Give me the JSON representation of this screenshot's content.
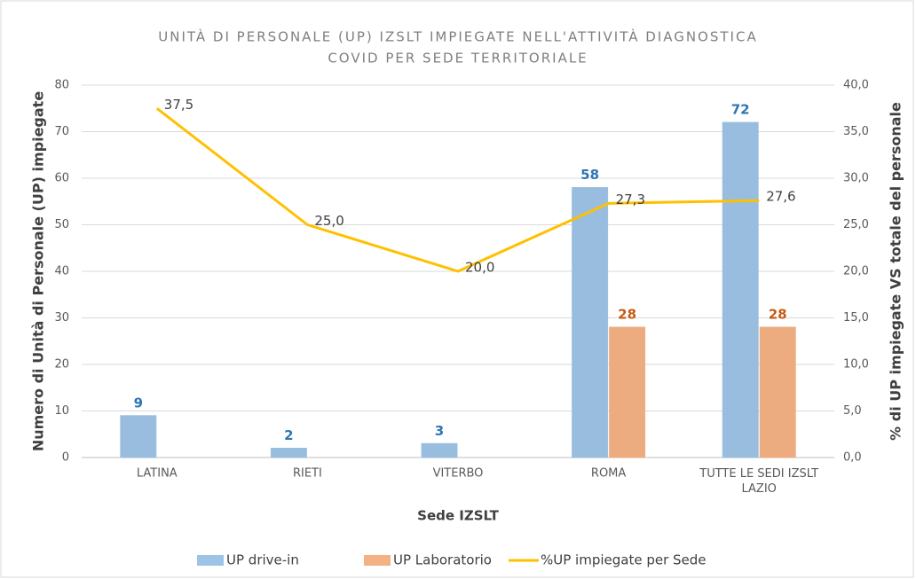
{
  "chart_data": {
    "type": "bar",
    "title": [
      "UNITÀ DI PERSONALE (UP) IZSLT IMPIEGATE NELL'ATTIVITÀ DIAGNOSTICA",
      "COVID PER SEDE TERRITORIALE"
    ],
    "x_label": "Sede IZSLT",
    "y_label": "Numero di Unità di Personale (UP)  impiegate",
    "y2_label": "% di UP  impiegate VS totale del personale",
    "categories": [
      "LATINA",
      "RIETI",
      "VITERBO",
      "ROMA",
      "TUTTE LE SEDI IZSLT LAZIO"
    ],
    "series": [
      {
        "name": "UP  drive-in",
        "type": "bar",
        "color": "#9dc3e6",
        "label_color": "#2e75b6",
        "values": [
          9,
          2,
          3,
          58,
          72
        ]
      },
      {
        "name": "UP Laboratorio",
        "type": "bar",
        "color": "#f4b183",
        "label_color": "#c55a11",
        "values": [
          null,
          null,
          null,
          28,
          28
        ]
      },
      {
        "name": "%UP impiegate per Sede",
        "type": "line",
        "axis": "y2",
        "color": "#ffc000",
        "values": [
          37.5,
          25.0,
          20.0,
          27.3,
          27.6
        ],
        "value_labels": [
          "37,5",
          "25,0",
          "20,0",
          "27,3",
          "27,6"
        ]
      }
    ],
    "ylim": [
      0,
      80
    ],
    "yticks": [
      0,
      10,
      20,
      30,
      40,
      50,
      60,
      70,
      80
    ],
    "y2lim": [
      0,
      40
    ],
    "y2ticks": [
      {
        "value": 0,
        "label": "0,0"
      },
      {
        "value": 5,
        "label": "5,0"
      },
      {
        "value": 10,
        "label": "10,0"
      },
      {
        "value": 15,
        "label": "15,0"
      },
      {
        "value": 20,
        "label": "20,0"
      },
      {
        "value": 25,
        "label": "25,0"
      },
      {
        "value": 30,
        "label": "30,0"
      },
      {
        "value": 35,
        "label": "35,0"
      },
      {
        "value": 40,
        "label": "40,0"
      }
    ],
    "grid": true,
    "legend": "bottom"
  }
}
